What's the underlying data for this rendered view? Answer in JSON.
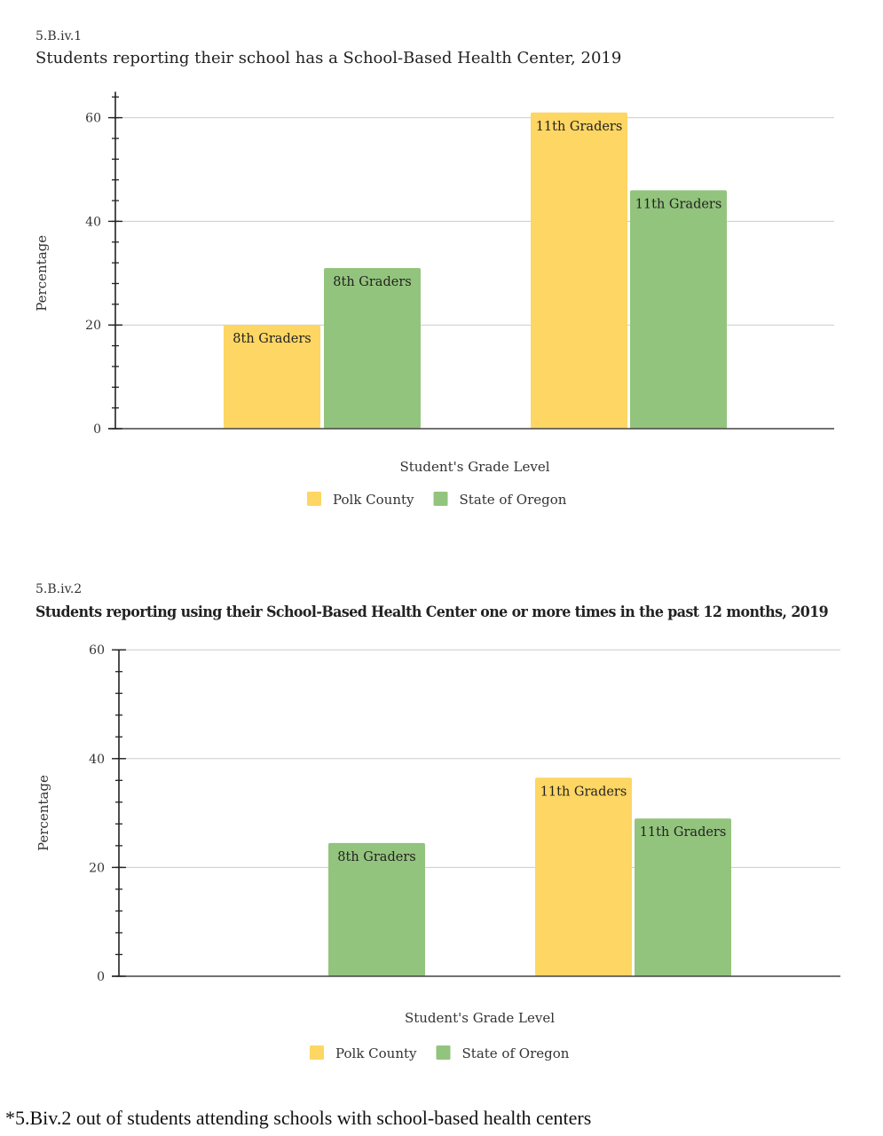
{
  "colors": {
    "polk": "#fdd663",
    "oregon": "#93c47d",
    "axis": "#222222",
    "grid": "#cccccc"
  },
  "footnote": "*5.Biv.2 out of students attending schools with school-based health centers",
  "chart_data": [
    {
      "type": "bar",
      "id": "5.B.iv.1",
      "title": "Students reporting their school has a School-Based Health Center, 2019",
      "xlabel": "Student's Grade Level",
      "ylabel": "Percentage",
      "ylim": [
        0,
        65
      ],
      "yticks": [
        0,
        20,
        40,
        60
      ],
      "ytick_labels": [
        "0",
        "20",
        "40",
        "60"
      ],
      "minor_tick_step": 4,
      "grid": true,
      "legend_position": "bottom",
      "categories": [
        "8th Graders",
        "11th Graders"
      ],
      "series": [
        {
          "name": "Polk County",
          "color": "#fdd663",
          "values": [
            20,
            61
          ],
          "labels": [
            "8th Graders",
            "11th Graders"
          ]
        },
        {
          "name": "State of Oregon",
          "color": "#93c47d",
          "values": [
            31,
            46
          ],
          "labels": [
            "8th Graders",
            "11th Graders"
          ]
        }
      ]
    },
    {
      "type": "bar",
      "id": "5.B.iv.2",
      "title": "Students reporting using their School-Based Health Center one or more times in the past 12 months, 2019",
      "xlabel": "Student's Grade Level",
      "ylabel": "Percentage",
      "ylim": [
        0,
        60
      ],
      "yticks": [
        0,
        20,
        40,
        60
      ],
      "ytick_labels": [
        "0",
        "20",
        "40",
        "60"
      ],
      "minor_tick_step": 4,
      "grid": true,
      "legend_position": "bottom",
      "categories": [
        "8th Graders",
        "11th Graders"
      ],
      "series": [
        {
          "name": "Polk County",
          "color": "#fdd663",
          "values": [
            null,
            36.5
          ],
          "labels": [
            "",
            "11th Graders"
          ]
        },
        {
          "name": "State of Oregon",
          "color": "#93c47d",
          "values": [
            24.5,
            29
          ],
          "labels": [
            "8th Graders",
            "11th Graders"
          ]
        }
      ]
    }
  ]
}
